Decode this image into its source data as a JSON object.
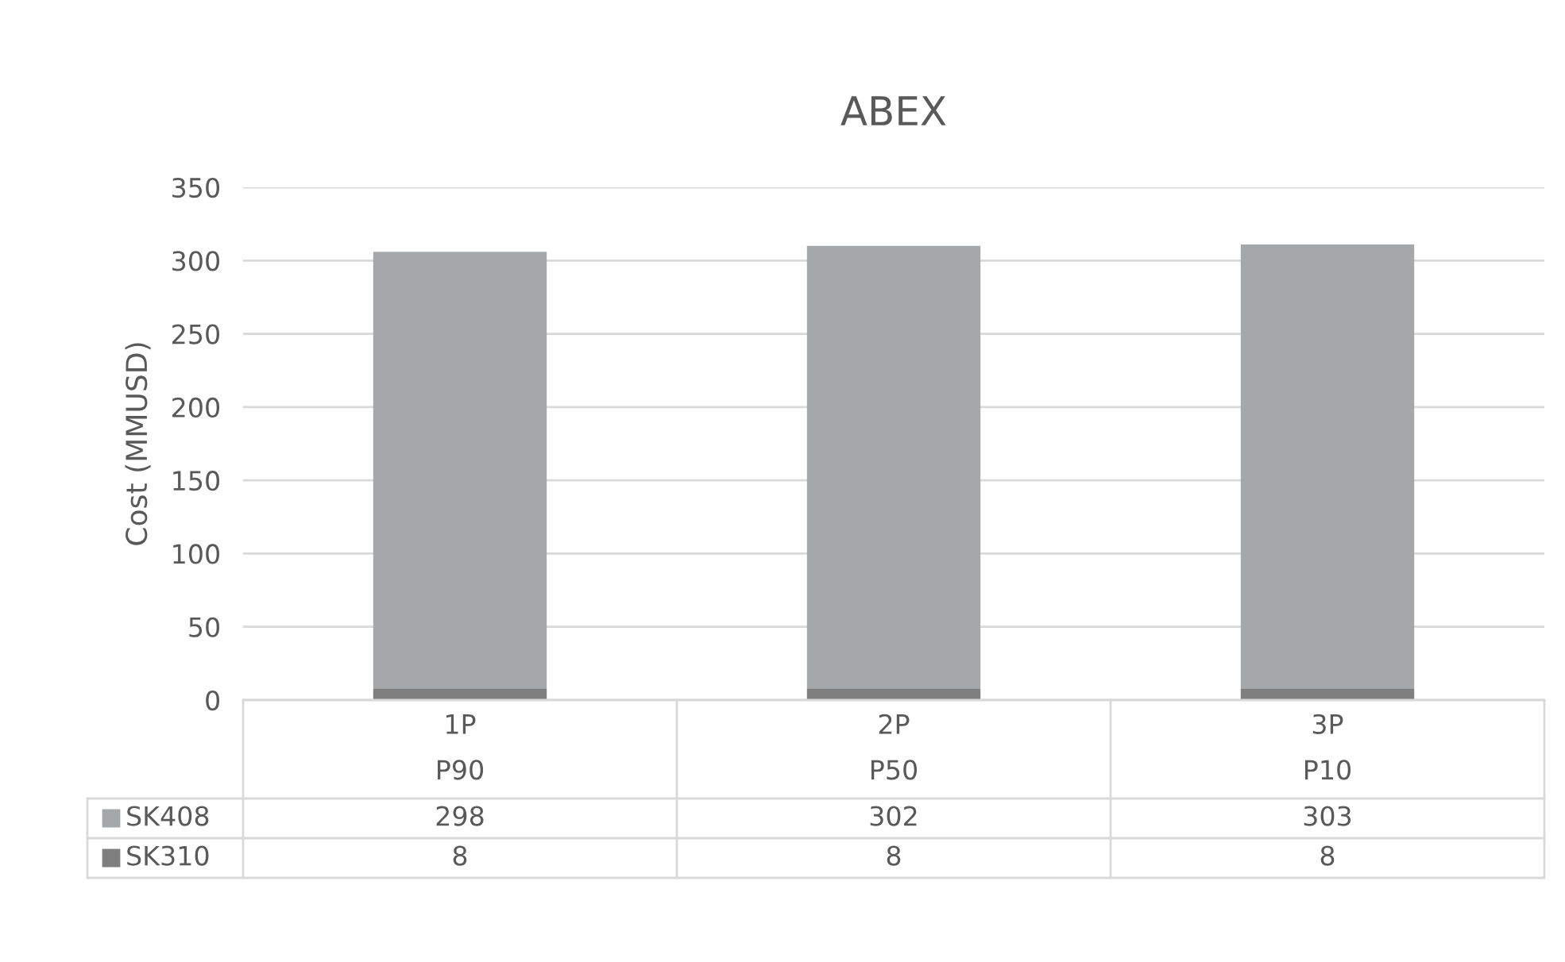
{
  "chart_data": {
    "type": "bar",
    "title": "ABEX",
    "ylabel": "Cost (MMUSD)",
    "categories": [
      "1P\nP90",
      "2P\nP50",
      "3P\nP10"
    ],
    "series": [
      {
        "name": "SK310",
        "color": "#7f7f7f",
        "values": [
          8,
          8,
          8
        ]
      },
      {
        "name": "SK408",
        "color": "#a5a8ab",
        "values": [
          298,
          302,
          303
        ]
      }
    ],
    "stacked": true,
    "ylim": [
      0,
      350
    ],
    "yticks": [
      0,
      50,
      100,
      150,
      200,
      250,
      300,
      350
    ],
    "grid": "y",
    "legend": "bottom",
    "data_labels": true
  }
}
